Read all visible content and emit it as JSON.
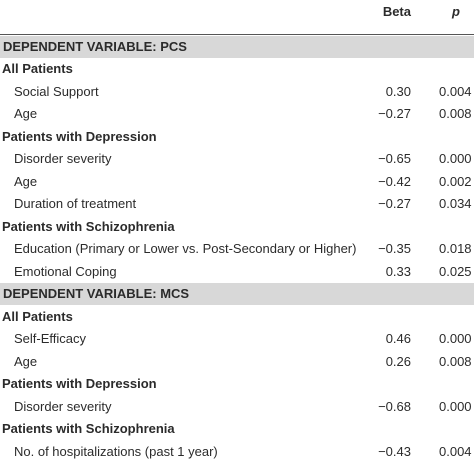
{
  "header": {
    "beta": "Beta",
    "p": "p"
  },
  "sections": [
    {
      "title": "DEPENDENT VARIABLE: PCS",
      "groups": [
        {
          "title": "All Patients",
          "rows": [
            [
              "Social Support",
              "0.30",
              "0.004"
            ],
            [
              "Age",
              "−0.27",
              "0.008"
            ]
          ]
        },
        {
          "title": "Patients with Depression",
          "rows": [
            [
              "Disorder severity",
              "−0.65",
              "0.000"
            ],
            [
              "Age",
              "−0.42",
              "0.002"
            ],
            [
              "Duration of treatment",
              "−0.27",
              "0.034"
            ]
          ]
        },
        {
          "title": "Patients with Schizophrenia",
          "rows": [
            [
              "Education (Primary or Lower vs. Post-Secondary or Higher)",
              "−0.35",
              "0.018"
            ],
            [
              "Emotional Coping",
              "0.33",
              "0.025"
            ]
          ]
        }
      ]
    },
    {
      "title": "DEPENDENT VARIABLE: MCS",
      "groups": [
        {
          "title": "All Patients",
          "rows": [
            [
              "Self-Efficacy",
              "0.46",
              "0.000"
            ],
            [
              "Age",
              "0.26",
              "0.008"
            ]
          ]
        },
        {
          "title": "Patients with Depression",
          "rows": [
            [
              "Disorder severity",
              "−0.68",
              "0.000"
            ]
          ]
        },
        {
          "title": "Patients with Schizophrenia",
          "rows": [
            [
              "No. of hospitalizations (past 1 year)",
              "−0.43",
              "0.004"
            ]
          ]
        }
      ]
    }
  ]
}
